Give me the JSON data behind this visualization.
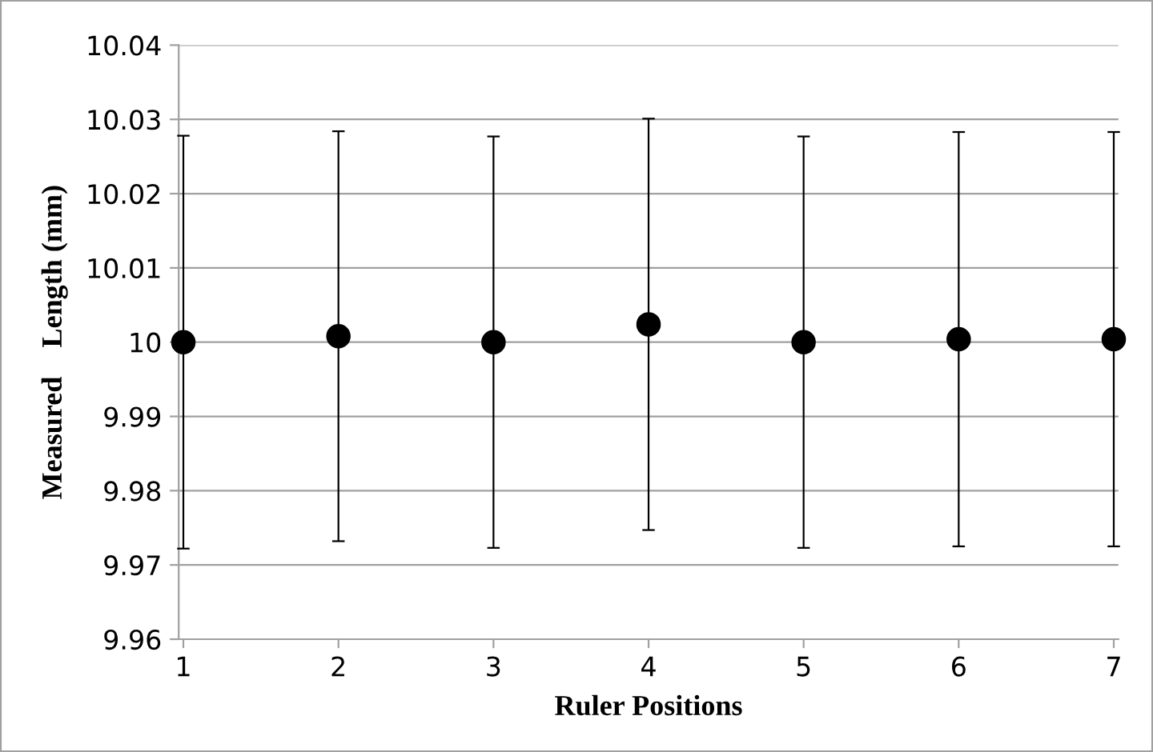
{
  "chart_data": {
    "type": "scatter",
    "xlabel": "Ruler Positions",
    "ylabel": "Measured    Length (mm)",
    "x": [
      1,
      2,
      3,
      4,
      5,
      6,
      7
    ],
    "series": [
      {
        "color": "#000000",
        "values": [
          10.0,
          10.0008,
          10.0,
          10.0024,
          10.0,
          10.0004,
          10.0004
        ],
        "errors": [
          0.0278,
          0.0276,
          0.0277,
          0.0277,
          0.0277,
          0.0279,
          0.0279
        ]
      }
    ],
    "xlim": [
      0.97,
      7.03
    ],
    "xticks": [
      1,
      2,
      3,
      4,
      5,
      6,
      7
    ],
    "ylim": [
      9.96,
      10.04
    ],
    "yticks": [
      9.96,
      9.97,
      9.98,
      9.99,
      10,
      10.01,
      10.02,
      10.03,
      10.04
    ],
    "grid": "y",
    "marker": "circle",
    "legend": false
  }
}
